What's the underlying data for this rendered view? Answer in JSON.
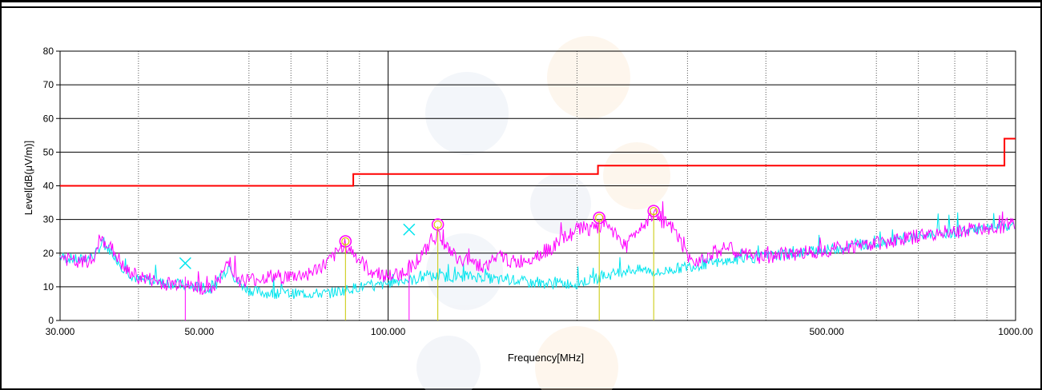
{
  "chart_data": {
    "type": "line",
    "title": "",
    "xlabel": "Frequency[MHz]",
    "ylabel": "Level[dB(μV/m)]",
    "x_scale": "log",
    "xlim": [
      30,
      1000
    ],
    "ylim": [
      0,
      80
    ],
    "grid": true,
    "x_tick_labels": [
      {
        "value": 30,
        "label": "30.000"
      },
      {
        "value": 50,
        "label": "50.000"
      },
      {
        "value": 100,
        "label": "100.000"
      },
      {
        "value": 500,
        "label": "500.000"
      },
      {
        "value": 1000,
        "label": "1000.00"
      }
    ],
    "x_minor_gridlines": [
      40,
      60,
      70,
      80,
      90,
      200,
      300,
      400,
      600,
      700,
      800,
      900
    ],
    "y_ticks": [
      0,
      10,
      20,
      30,
      40,
      50,
      60,
      70,
      80
    ],
    "colors": {
      "limit": "#ff0000",
      "peak": "#ff00ff",
      "quasi_peak": "#00e5ee",
      "marker_circle": "#ff00ff",
      "marker_stem_yellow": "#c8c800",
      "marker_stem_magenta": "#ff00ff",
      "marker_cross": "#00e5ee"
    },
    "series": [
      {
        "name": "",
        "role": "limit",
        "color": "#ff0000",
        "points": [
          [
            30,
            40
          ],
          [
            88,
            40
          ],
          [
            88,
            43.5
          ],
          [
            216,
            43.5
          ],
          [
            216,
            46
          ],
          [
            960,
            46
          ],
          [
            960,
            54
          ],
          [
            1000,
            54
          ]
        ]
      },
      {
        "name": "",
        "role": "peak",
        "color": "#ff00ff",
        "points": [
          [
            30,
            19
          ],
          [
            32,
            17
          ],
          [
            34,
            18
          ],
          [
            35,
            24
          ],
          [
            36,
            22
          ],
          [
            37,
            19
          ],
          [
            38,
            15
          ],
          [
            40,
            13
          ],
          [
            42,
            12
          ],
          [
            44,
            11
          ],
          [
            46,
            11
          ],
          [
            47,
            12
          ],
          [
            48,
            10
          ],
          [
            50,
            10
          ],
          [
            52,
            9
          ],
          [
            54,
            12
          ],
          [
            55,
            16
          ],
          [
            56,
            18
          ],
          [
            57,
            13
          ],
          [
            58,
            12
          ],
          [
            60,
            12
          ],
          [
            65,
            13
          ],
          [
            70,
            13
          ],
          [
            75,
            14
          ],
          [
            80,
            17
          ],
          [
            83,
            20
          ],
          [
            85,
            23
          ],
          [
            87,
            21
          ],
          [
            90,
            18
          ],
          [
            93,
            15
          ],
          [
            97,
            14
          ],
          [
            100,
            13
          ],
          [
            105,
            14
          ],
          [
            110,
            17
          ],
          [
            115,
            21
          ],
          [
            118,
            24
          ],
          [
            120,
            26
          ],
          [
            122,
            24
          ],
          [
            125,
            21
          ],
          [
            128,
            19
          ],
          [
            132,
            17
          ],
          [
            135,
            19
          ],
          [
            138,
            17
          ],
          [
            142,
            16
          ],
          [
            148,
            18
          ],
          [
            152,
            19
          ],
          [
            155,
            18
          ],
          [
            160,
            17
          ],
          [
            170,
            19
          ],
          [
            180,
            21
          ],
          [
            190,
            24
          ],
          [
            200,
            27
          ],
          [
            205,
            28
          ],
          [
            210,
            27
          ],
          [
            215,
            27
          ],
          [
            220,
            29
          ],
          [
            225,
            28
          ],
          [
            230,
            26
          ],
          [
            235,
            24
          ],
          [
            240,
            22
          ],
          [
            245,
            25
          ],
          [
            250,
            27
          ],
          [
            255,
            29
          ],
          [
            260,
            30
          ],
          [
            264,
            32
          ],
          [
            268,
            31
          ],
          [
            275,
            29
          ],
          [
            285,
            27
          ],
          [
            295,
            22
          ],
          [
            300,
            18
          ],
          [
            310,
            18
          ],
          [
            330,
            20
          ],
          [
            345,
            22
          ],
          [
            360,
            20
          ],
          [
            380,
            19
          ],
          [
            400,
            19
          ],
          [
            450,
            20
          ],
          [
            500,
            21
          ],
          [
            550,
            22
          ],
          [
            600,
            23
          ],
          [
            650,
            24
          ],
          [
            700,
            25
          ],
          [
            750,
            26
          ],
          [
            800,
            26
          ],
          [
            850,
            27
          ],
          [
            900,
            27
          ],
          [
            950,
            28
          ],
          [
            1000,
            29
          ]
        ]
      },
      {
        "name": "",
        "role": "quasi-peak",
        "color": "#00e5ee",
        "points": [
          [
            30,
            19
          ],
          [
            32,
            18
          ],
          [
            34,
            19
          ],
          [
            35,
            23
          ],
          [
            36,
            21
          ],
          [
            37,
            18
          ],
          [
            38,
            15
          ],
          [
            40,
            12
          ],
          [
            42,
            12
          ],
          [
            44,
            11
          ],
          [
            46,
            11
          ],
          [
            48,
            10
          ],
          [
            50,
            10
          ],
          [
            52,
            9
          ],
          [
            54,
            12
          ],
          [
            56,
            17
          ],
          [
            57,
            12
          ],
          [
            58,
            11
          ],
          [
            60,
            9
          ],
          [
            65,
            8
          ],
          [
            70,
            8
          ],
          [
            75,
            8
          ],
          [
            80,
            8
          ],
          [
            85,
            9
          ],
          [
            90,
            10
          ],
          [
            95,
            10
          ],
          [
            100,
            11
          ],
          [
            105,
            12
          ],
          [
            110,
            12
          ],
          [
            115,
            13
          ],
          [
            120,
            13
          ],
          [
            130,
            13
          ],
          [
            140,
            13
          ],
          [
            150,
            12
          ],
          [
            160,
            12
          ],
          [
            170,
            11
          ],
          [
            180,
            11
          ],
          [
            190,
            11
          ],
          [
            200,
            11
          ],
          [
            210,
            12
          ],
          [
            220,
            13
          ],
          [
            230,
            14
          ],
          [
            240,
            15
          ],
          [
            250,
            15
          ],
          [
            260,
            15
          ],
          [
            270,
            14
          ],
          [
            280,
            15
          ],
          [
            300,
            16
          ],
          [
            330,
            17
          ],
          [
            360,
            18
          ],
          [
            400,
            19
          ],
          [
            450,
            20
          ],
          [
            500,
            21
          ],
          [
            550,
            22
          ],
          [
            600,
            23
          ],
          [
            650,
            24
          ],
          [
            700,
            25
          ],
          [
            750,
            26
          ],
          [
            800,
            26
          ],
          [
            850,
            27
          ],
          [
            900,
            27
          ],
          [
            950,
            28
          ],
          [
            1000,
            28
          ]
        ]
      }
    ],
    "markers": [
      {
        "type": "circle",
        "x": 85.5,
        "y": 23.5
      },
      {
        "type": "circle",
        "x": 120,
        "y": 28.5
      },
      {
        "type": "circle",
        "x": 217,
        "y": 30.5
      },
      {
        "type": "circle",
        "x": 265,
        "y": 32.5
      },
      {
        "type": "stem",
        "x": 85.5,
        "y": 23,
        "color": "#c8c800"
      },
      {
        "type": "stem",
        "x": 120,
        "y": 28,
        "color": "#c8c800"
      },
      {
        "type": "stem",
        "x": 217,
        "y": 30,
        "color": "#c8c800"
      },
      {
        "type": "stem",
        "x": 265,
        "y": 32,
        "color": "#c8c800"
      },
      {
        "type": "stem",
        "x": 47.5,
        "y": 13,
        "color": "#ff00ff"
      },
      {
        "type": "stem",
        "x": 108,
        "y": 18,
        "color": "#ff00ff"
      },
      {
        "type": "cross",
        "x": 47.5,
        "y": 17
      },
      {
        "type": "cross",
        "x": 108,
        "y": 27
      }
    ]
  }
}
